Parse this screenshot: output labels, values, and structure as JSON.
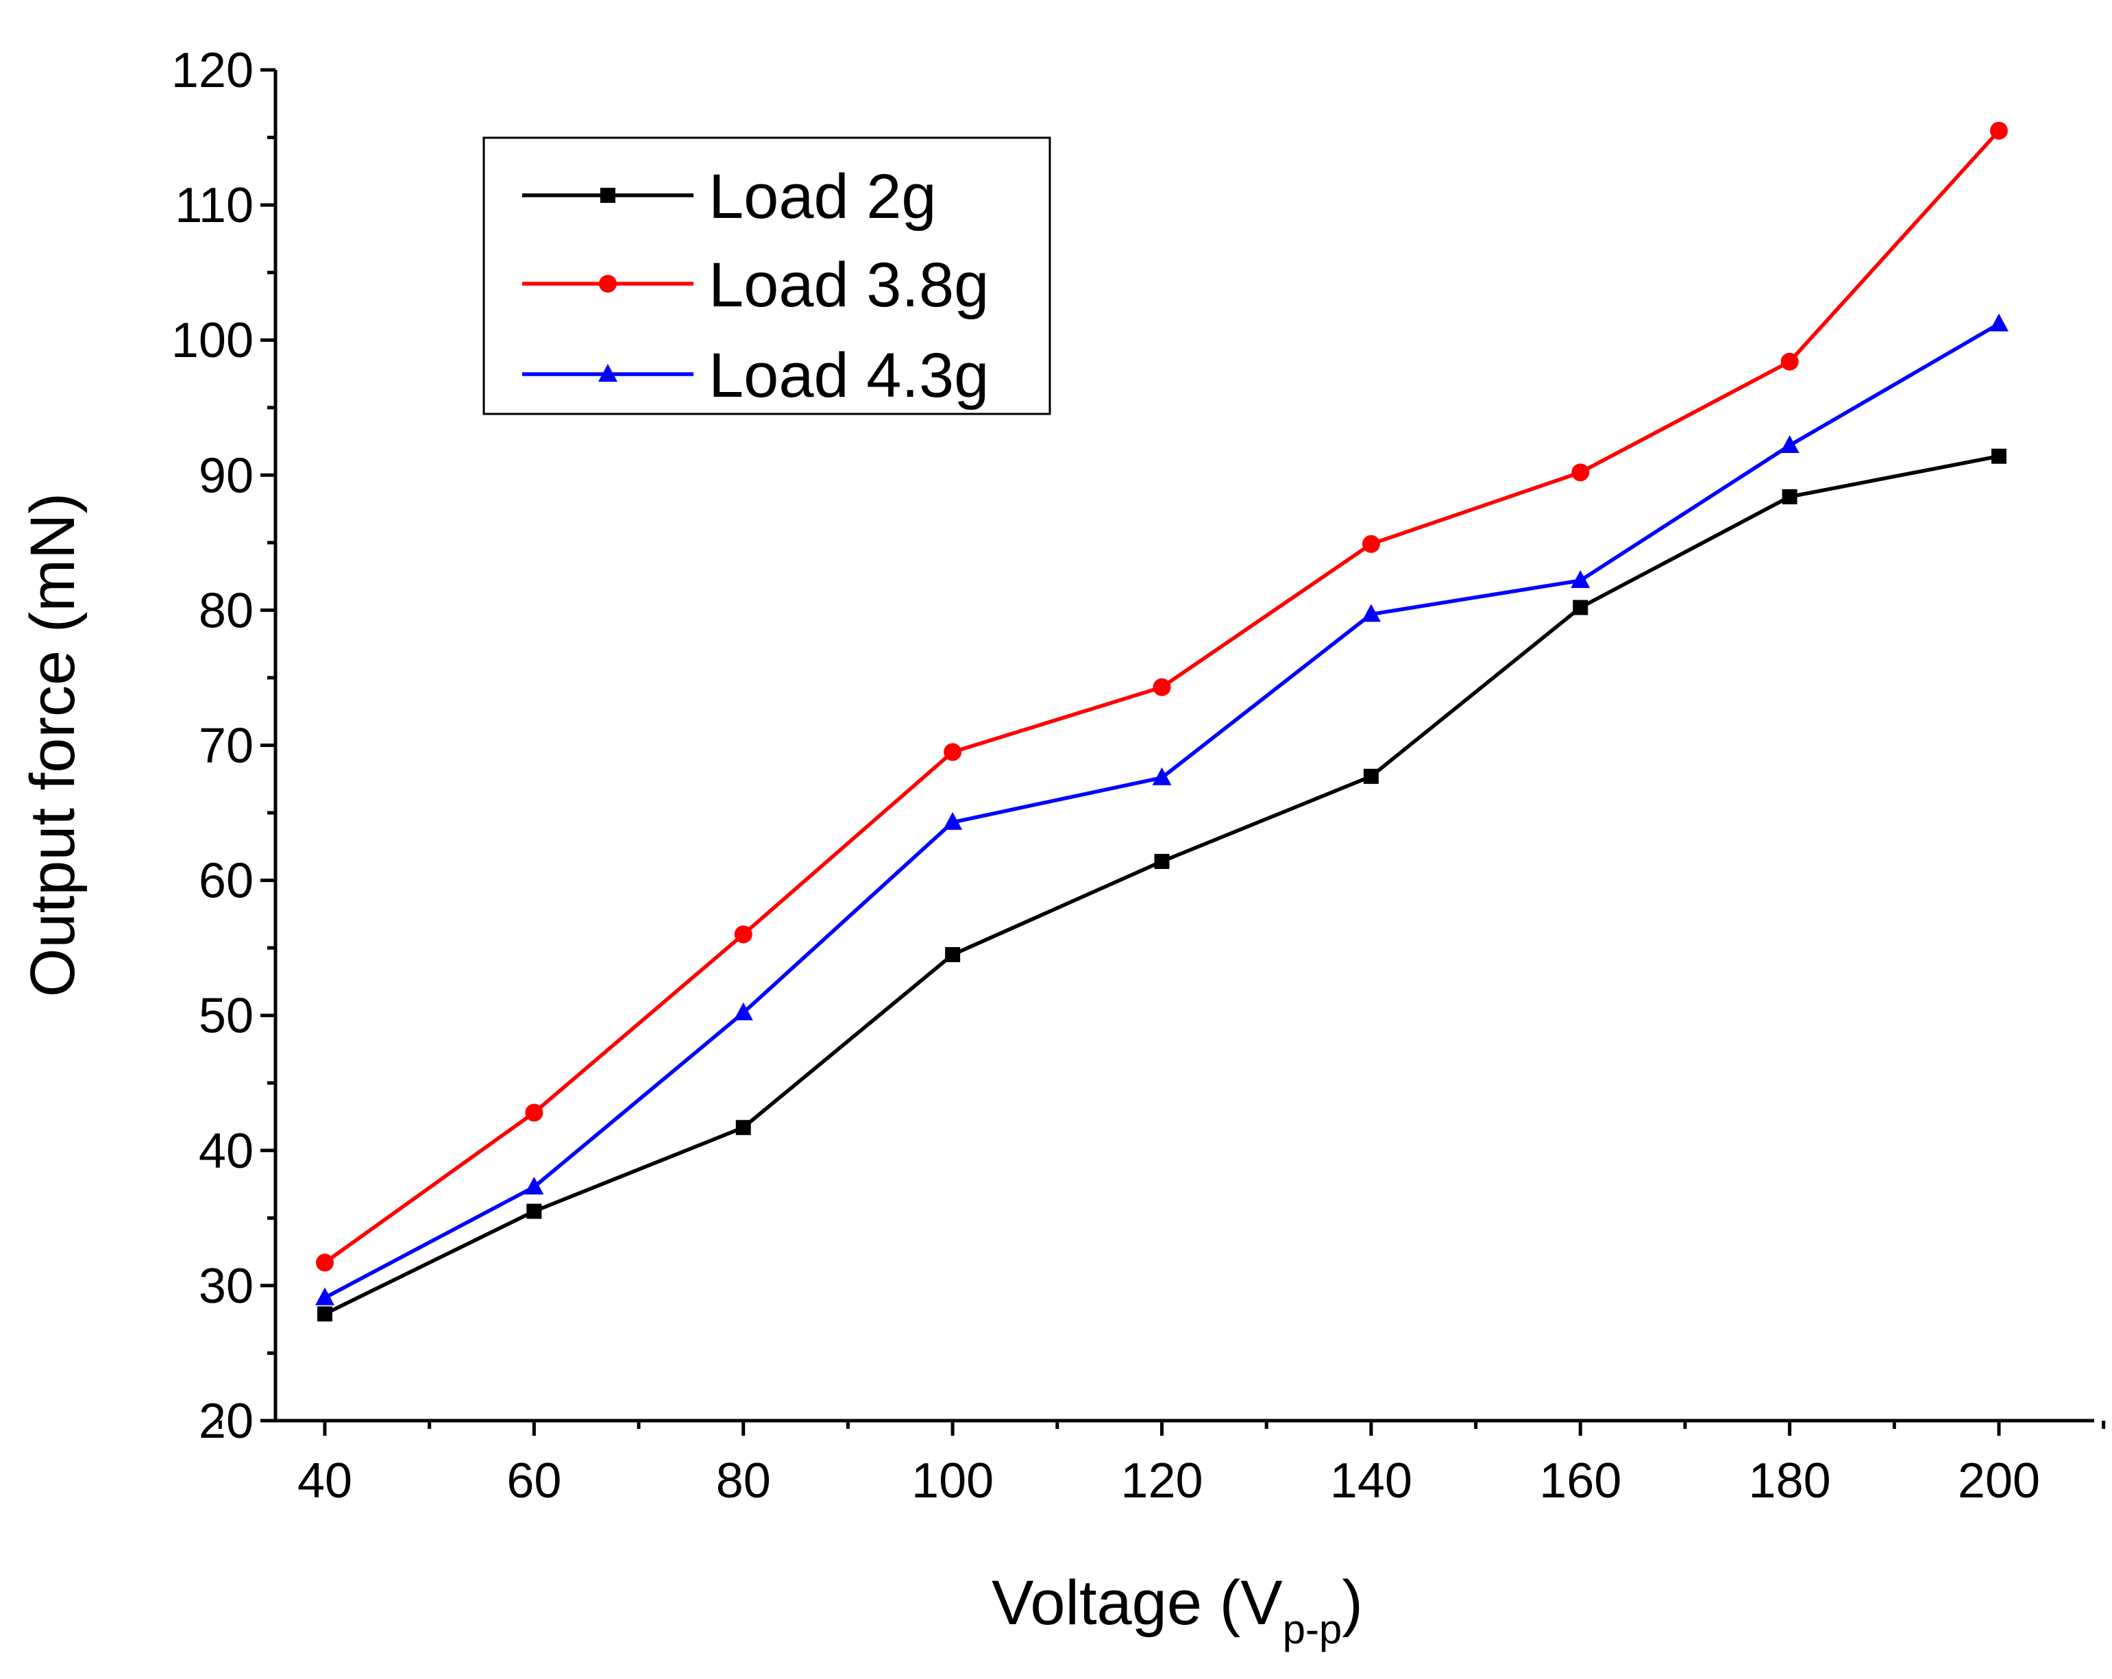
{
  "chart_data": {
    "type": "line",
    "xlabel": "Voltage (V",
    "xlabel_subscript": "p-p",
    "xlabel_suffix": ")",
    "ylabel": "Output force (mN)",
    "xlim": [
      35,
      210
    ],
    "ylim": [
      20,
      120
    ],
    "x_ticks": [
      40,
      60,
      80,
      100,
      120,
      140,
      160,
      180,
      200
    ],
    "x_tick_labels": [
      "40",
      "60",
      "80",
      "100",
      "120",
      "140",
      "160",
      "180",
      "200"
    ],
    "y_ticks": [
      20,
      30,
      40,
      50,
      60,
      70,
      80,
      90,
      100,
      110,
      120
    ],
    "y_tick_labels": [
      "20",
      "30",
      "40",
      "50",
      "60",
      "70",
      "80",
      "90",
      "100",
      "110",
      "120"
    ],
    "grid": false,
    "legend_position": "top-left",
    "x": [
      40,
      60,
      80,
      100,
      120,
      140,
      160,
      180,
      200
    ],
    "series": [
      {
        "name": "Load 2g",
        "color": "#000000",
        "marker": "square",
        "values": [
          27.9,
          35.5,
          41.7,
          54.5,
          61.4,
          67.7,
          80.2,
          88.4,
          91.4
        ]
      },
      {
        "name": "Load 3.8g",
        "color": "#ff0000",
        "marker": "circle",
        "values": [
          31.7,
          42.8,
          56.0,
          69.5,
          74.3,
          84.9,
          90.2,
          98.4,
          115.5
        ]
      },
      {
        "name": "Load 4.3g",
        "color": "#0000ff",
        "marker": "triangle",
        "values": [
          29.1,
          37.3,
          50.2,
          64.3,
          67.6,
          79.7,
          82.2,
          92.2,
          101.2
        ]
      }
    ]
  }
}
